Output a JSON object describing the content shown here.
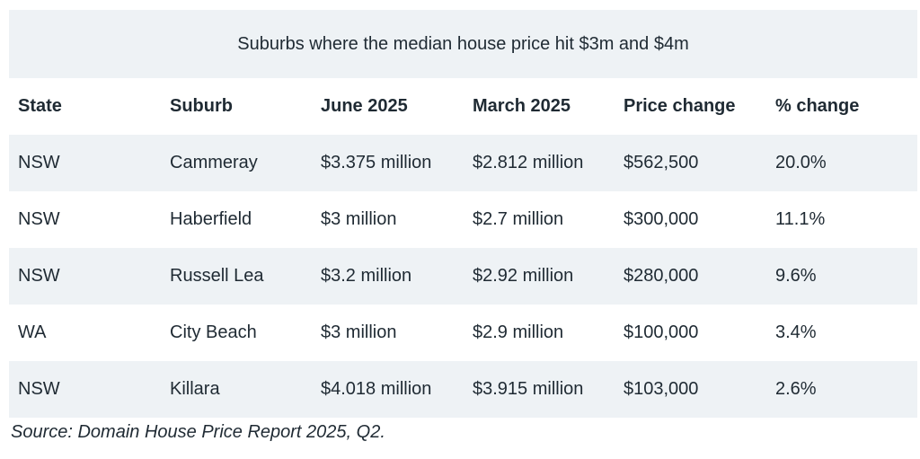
{
  "table": {
    "caption": "Suburbs where the median house price hit $3m and $4m",
    "headers": [
      "State",
      "Suburb",
      "June 2025",
      "March 2025",
      "Price change",
      "% change"
    ],
    "rows": [
      [
        "NSW",
        "Cammeray",
        "$3.375 million",
        "$2.812 million",
        "$562,500",
        "20.0%"
      ],
      [
        "NSW",
        "Haberfield",
        "$3 million",
        "$2.7 million",
        "$300,000",
        "11.1%"
      ],
      [
        "NSW",
        "Russell Lea",
        "$3.2 million",
        "$2.92 million",
        "$280,000",
        "9.6%"
      ],
      [
        "WA",
        "City Beach",
        "$3 million",
        "$2.9 million",
        "$100,000",
        "3.4%"
      ],
      [
        "NSW",
        "Killara",
        "$4.018 million",
        "$3.915 million",
        "$103,000",
        "2.6%"
      ]
    ]
  },
  "source": "Source: Domain House Price Report 2025, Q2."
}
